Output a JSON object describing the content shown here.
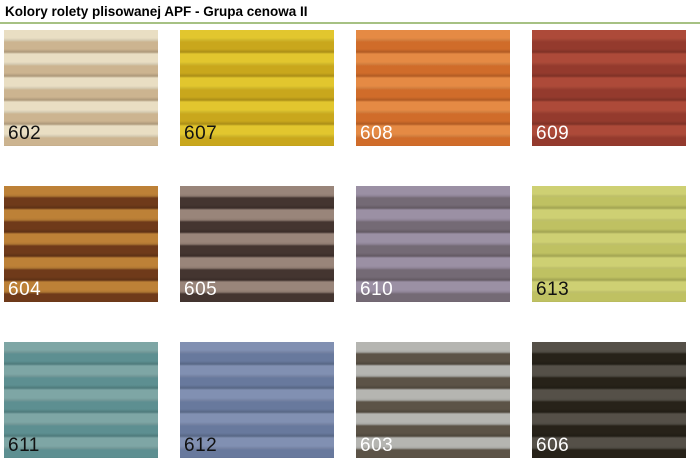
{
  "page": {
    "title": "Kolory rolety plisowanej APF - Grupa cenowa II"
  },
  "divider": {
    "color": "#a6c183"
  },
  "swatches": [
    {
      "code": "602",
      "light": "#e9dec3",
      "dark": "#ccb490",
      "label_color": "#111111"
    },
    {
      "code": "607",
      "light": "#e2c62e",
      "dark": "#c9a71c",
      "label_color": "#111111"
    },
    {
      "code": "608",
      "light": "#e58a44",
      "dark": "#d06c2a",
      "label_color": "#ffffff"
    },
    {
      "code": "609",
      "light": "#ad4a39",
      "dark": "#943a2d",
      "label_color": "#ffffff"
    },
    {
      "code": "604",
      "light": "#bd8137",
      "dark": "#6f3a1a",
      "label_color": "#ffffff"
    },
    {
      "code": "605",
      "light": "#99857a",
      "dark": "#443530",
      "label_color": "#ffffff"
    },
    {
      "code": "610",
      "light": "#9b90a4",
      "dark": "#746a75",
      "label_color": "#ffffff"
    },
    {
      "code": "613",
      "light": "#ced073",
      "dark": "#bfc162",
      "label_color": "#111111"
    },
    {
      "code": "611",
      "light": "#7ea6a5",
      "dark": "#5d8f91",
      "label_color": "#111111"
    },
    {
      "code": "612",
      "light": "#8190b2",
      "dark": "#68799d",
      "label_color": "#111111"
    },
    {
      "code": "603",
      "light": "#b5b5b1",
      "dark": "#5c5347",
      "label_color": "#ffffff"
    },
    {
      "code": "606",
      "light": "#555048",
      "dark": "#272219",
      "label_color": "#ffffff"
    }
  ]
}
